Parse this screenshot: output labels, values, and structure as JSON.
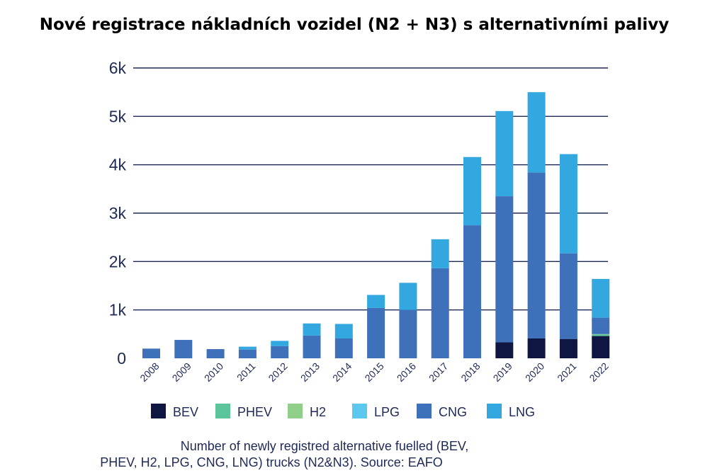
{
  "chart_data": {
    "type": "bar",
    "stacked": true,
    "title": "Nové registrace nákladních vozidel (N2 + N3) s alternativními palivy",
    "categories": [
      "2008",
      "2009",
      "2010",
      "2011",
      "2012",
      "2013",
      "2014",
      "2015",
      "2016",
      "2017",
      "2018",
      "2019",
      "2020",
      "2021",
      "2022"
    ],
    "series": [
      {
        "name": "BEV",
        "color": "#0f1642",
        "values": [
          0,
          0,
          0,
          0,
          0,
          0,
          0,
          0,
          0,
          0,
          0,
          330,
          410,
          400,
          460
        ]
      },
      {
        "name": "PHEV",
        "color": "#5bc49a",
        "values": [
          0,
          0,
          0,
          0,
          0,
          0,
          0,
          0,
          0,
          0,
          0,
          0,
          0,
          0,
          30
        ]
      },
      {
        "name": "H2",
        "color": "#8fcf8a",
        "values": [
          0,
          0,
          0,
          0,
          0,
          0,
          0,
          0,
          0,
          0,
          0,
          0,
          0,
          0,
          10
        ]
      },
      {
        "name": "LPG",
        "color": "#5cc8ee",
        "values": [
          0,
          0,
          0,
          0,
          0,
          0,
          0,
          0,
          0,
          0,
          0,
          0,
          0,
          0,
          0
        ]
      },
      {
        "name": "CNG",
        "color": "#3f71bb",
        "values": [
          200,
          380,
          190,
          180,
          250,
          470,
          410,
          1040,
          1000,
          1860,
          2750,
          3020,
          3430,
          1770,
          340
        ]
      },
      {
        "name": "LNG",
        "color": "#33a8e0",
        "values": [
          0,
          0,
          0,
          60,
          110,
          250,
          300,
          270,
          560,
          600,
          1410,
          1760,
          1660,
          2050,
          800
        ]
      }
    ],
    "yticks": [
      "0",
      "1k",
      "2k",
      "3k",
      "4k",
      "5k",
      "6k"
    ],
    "ylim": [
      0,
      6000
    ],
    "grid": true,
    "legend_position": "bottom",
    "caption": [
      "Number of newly registred alternative fuelled (BEV,",
      "PHEV, H2, LPG, CNG, LNG) trucks (N2&N3). Source: EAFO"
    ]
  }
}
